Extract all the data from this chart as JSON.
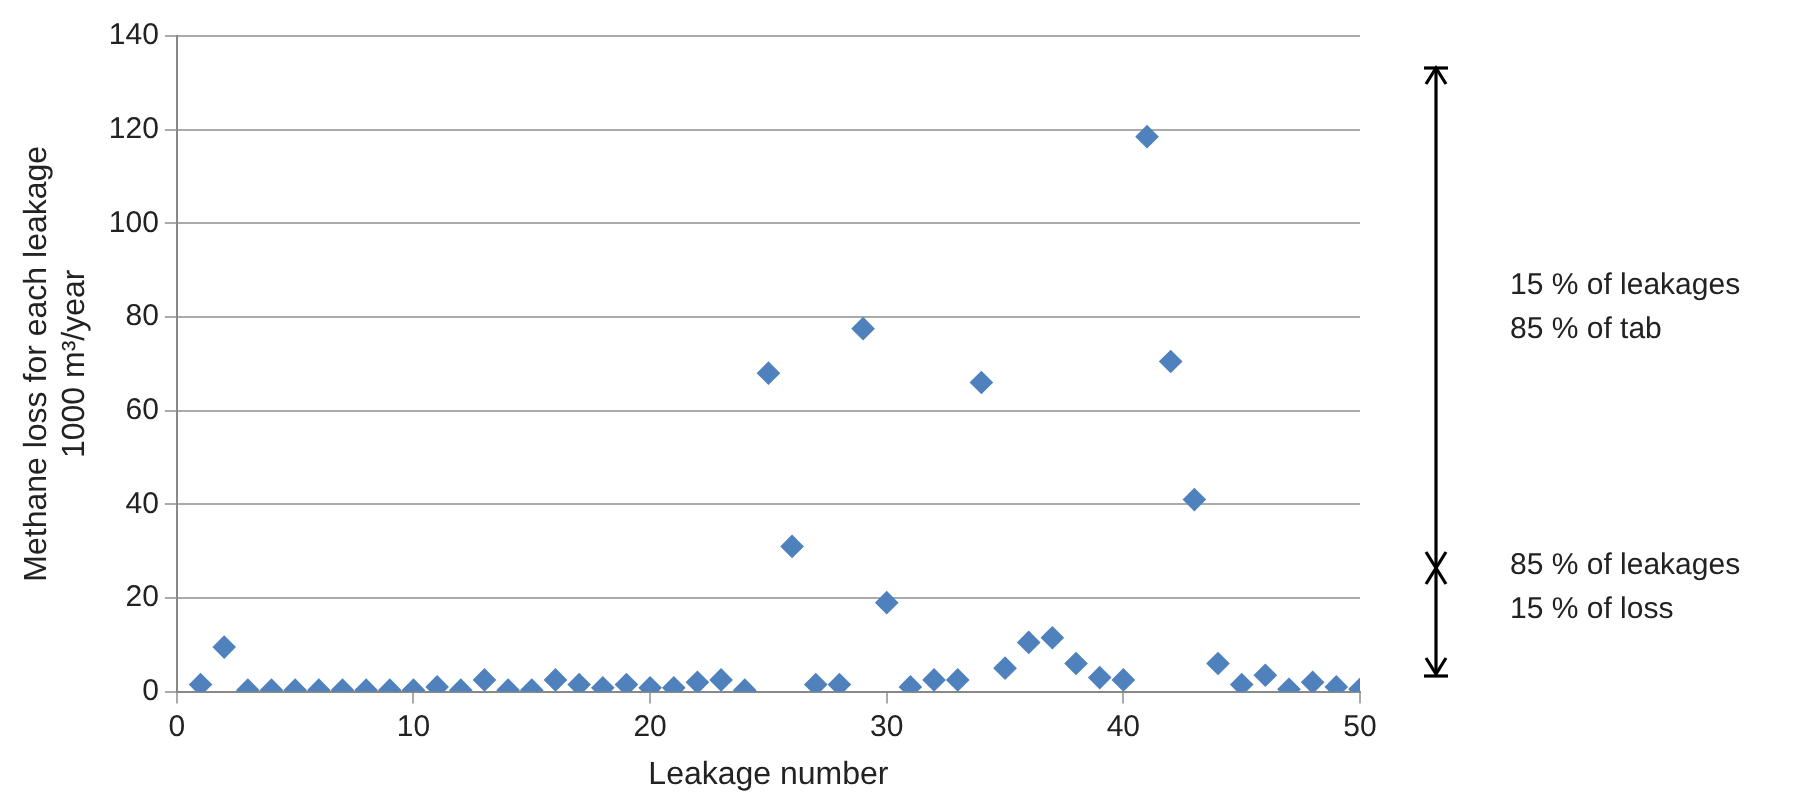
{
  "chart_data": {
    "type": "scatter",
    "xlabel": "Leakage number",
    "ylabel": "Methane loss for each leakage\n1000 m³/year",
    "x": [
      1,
      2,
      3,
      4,
      5,
      6,
      7,
      8,
      9,
      10,
      11,
      12,
      13,
      14,
      15,
      16,
      17,
      18,
      19,
      20,
      21,
      22,
      23,
      24,
      25,
      26,
      27,
      28,
      29,
      30,
      31,
      32,
      33,
      34,
      35,
      36,
      37,
      38,
      39,
      40,
      41,
      42,
      43,
      44,
      45,
      46,
      47,
      48,
      49,
      50
    ],
    "series": [
      {
        "color": "#4f81bd",
        "values": [
          1.5,
          9.5,
          0.3,
          0.3,
          0.3,
          0.3,
          0.3,
          0.3,
          0.3,
          0.3,
          1,
          0.3,
          2.5,
          0.3,
          0.3,
          2.5,
          1.5,
          0.8,
          1.5,
          0.8,
          0.8,
          2,
          2.5,
          0.3,
          68,
          31,
          1.5,
          1.5,
          77.5,
          19,
          1,
          2.5,
          2.5,
          66,
          5,
          10.5,
          11.5,
          6,
          3,
          2.5,
          118.5,
          70.5,
          41,
          6,
          1.5,
          3.5,
          0.5,
          2,
          1,
          0.5
        ]
      }
    ],
    "xlim": [
      0,
      50
    ],
    "xticks": [
      0,
      10,
      20,
      30,
      40,
      50
    ],
    "ylim": [
      0,
      140
    ],
    "yticks": [
      0,
      20,
      40,
      60,
      80,
      100,
      120,
      140
    ],
    "grid": "y",
    "marker": "diamond",
    "legend": false,
    "annotations": [
      "15 % of leakages\n85 % of tab",
      "85 % of leakages\n15 % of loss"
    ]
  }
}
